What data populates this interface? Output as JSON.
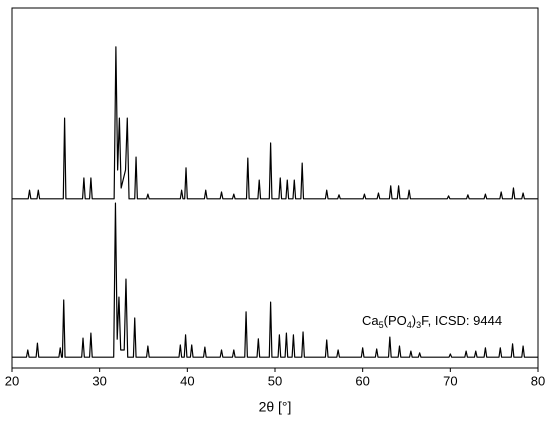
{
  "chart_data": {
    "type": "line",
    "x_label": "2θ [°]",
    "annotation": [
      "Ca",
      "5",
      "(PO",
      "4",
      ")",
      "3",
      "F, ICSD: 9444"
    ],
    "xlim": [
      20,
      80
    ],
    "xticks": [
      20,
      30,
      40,
      50,
      60,
      70,
      80
    ],
    "ylim": [
      0,
      100
    ],
    "series": [
      {
        "color": "#000000",
        "x": [
          20,
          21.85,
          22.0,
          22.15,
          22.85,
          23.0,
          23.15,
          25.85,
          26.0,
          26.15,
          28.05,
          28.2,
          28.35,
          28.85,
          29.0,
          29.15,
          31.65,
          31.85,
          32.05,
          32.25,
          32.45,
          32.95,
          33.15,
          33.35,
          34.0,
          34.15,
          34.3,
          35.35,
          35.5,
          35.65,
          39.2,
          39.35,
          39.5,
          39.7,
          39.85,
          40.0,
          41.95,
          42.1,
          42.25,
          43.75,
          43.9,
          44.05,
          45.15,
          45.3,
          45.45,
          46.75,
          46.9,
          47.05,
          48.05,
          48.2,
          48.35,
          49.35,
          49.5,
          49.65,
          50.45,
          50.6,
          50.75,
          51.25,
          51.4,
          51.55,
          52.05,
          52.2,
          52.35,
          52.95,
          53.1,
          53.25,
          55.75,
          55.9,
          56.05,
          57.15,
          57.3,
          57.45,
          60.05,
          60.2,
          60.35,
          61.65,
          61.8,
          61.95,
          63.05,
          63.2,
          63.35,
          63.95,
          64.1,
          64.25,
          65.15,
          65.3,
          65.45,
          69.65,
          69.8,
          69.95,
          71.85,
          72.0,
          72.15,
          73.85,
          74.0,
          74.15,
          75.65,
          75.8,
          75.95,
          77.05,
          77.2,
          77.35,
          78.15,
          78.3,
          78.45,
          80
        ],
        "values": [
          47,
          47,
          49.4,
          47,
          47,
          49.4,
          47,
          47,
          69.4,
          47,
          47,
          52.8,
          47,
          47,
          52.8,
          47,
          47,
          89.2,
          55,
          69.4,
          50,
          55,
          69.4,
          47,
          47,
          58.6,
          47,
          47,
          48.3,
          47,
          47,
          49.4,
          47,
          47,
          55.6,
          47,
          47,
          49.4,
          47,
          47,
          48.9,
          47,
          47,
          48.3,
          47,
          47,
          58.3,
          47,
          47,
          52.2,
          47,
          47,
          62.5,
          47,
          47,
          52.8,
          47,
          47,
          52.2,
          47,
          47,
          52.2,
          47,
          47,
          56.9,
          47,
          47,
          49.4,
          47,
          47,
          48.1,
          47,
          47,
          48.3,
          47,
          47,
          48.6,
          47,
          47,
          50.6,
          47,
          47,
          50.6,
          47,
          47,
          49.4,
          47,
          47,
          47.8,
          47,
          47,
          48.1,
          47,
          47,
          48.3,
          47,
          47,
          48.9,
          47,
          47,
          50,
          47,
          47,
          48.6,
          47,
          47
        ]
      },
      {
        "color": "#000000",
        "x": [
          20,
          21.65,
          21.8,
          21.95,
          22.75,
          22.9,
          23.05,
          25.35,
          25.5,
          25.65,
          25.75,
          25.9,
          26.05,
          27.95,
          28.1,
          28.25,
          28.85,
          29.0,
          29.15,
          31.6,
          31.8,
          32.0,
          32.2,
          32.4,
          32.8,
          33.0,
          33.2,
          33.85,
          34.0,
          34.15,
          35.35,
          35.5,
          35.65,
          39.05,
          39.2,
          39.35,
          39.65,
          39.8,
          39.95,
          40.35,
          40.5,
          40.65,
          41.85,
          42.0,
          42.15,
          43.75,
          43.9,
          44.05,
          45.15,
          45.3,
          45.45,
          46.55,
          46.7,
          46.85,
          47.95,
          48.1,
          48.25,
          49.35,
          49.5,
          49.65,
          50.35,
          50.5,
          50.65,
          51.15,
          51.3,
          51.45,
          51.95,
          52.1,
          52.25,
          53.05,
          53.2,
          53.35,
          55.75,
          55.9,
          56.05,
          57.05,
          57.2,
          57.35,
          59.85,
          60.0,
          60.15,
          61.45,
          61.6,
          61.75,
          62.95,
          63.1,
          63.25,
          64.05,
          64.2,
          64.35,
          65.35,
          65.5,
          65.65,
          66.35,
          66.5,
          66.65,
          69.85,
          70.0,
          70.15,
          71.65,
          71.8,
          71.95,
          72.75,
          72.9,
          73.05,
          73.85,
          74.0,
          74.15,
          75.55,
          75.7,
          75.85,
          76.95,
          77.1,
          77.25,
          78.15,
          78.3,
          78.45,
          80
        ],
        "values": [
          3,
          3,
          5,
          3,
          3,
          6.9,
          3,
          3,
          5.6,
          3,
          3,
          18.9,
          3,
          3,
          8.3,
          3,
          3,
          9.7,
          3,
          3,
          45.8,
          8,
          19.7,
          5,
          5,
          24.7,
          3,
          3,
          13.9,
          3,
          3,
          6.1,
          3,
          3,
          6.4,
          3,
          3,
          9.2,
          3,
          3,
          6.4,
          3,
          3,
          5.8,
          3,
          3,
          5,
          3,
          3,
          5,
          3,
          3,
          15.6,
          3,
          3,
          8.1,
          3,
          3,
          18.3,
          3,
          3,
          9.2,
          3,
          3,
          9.7,
          3,
          3,
          9.2,
          3,
          3,
          10,
          3,
          3,
          7.8,
          3,
          3,
          5,
          3,
          3,
          5.6,
          3,
          3,
          5.3,
          3,
          3,
          8.6,
          3,
          3,
          6.1,
          3,
          3,
          4.7,
          3,
          3,
          4.2,
          3,
          3,
          3.9,
          3,
          3,
          4.7,
          3,
          3,
          4.7,
          3,
          3,
          5.6,
          3,
          3,
          5.6,
          3,
          3,
          6.7,
          3,
          3,
          6.1,
          3,
          3
        ]
      }
    ]
  }
}
